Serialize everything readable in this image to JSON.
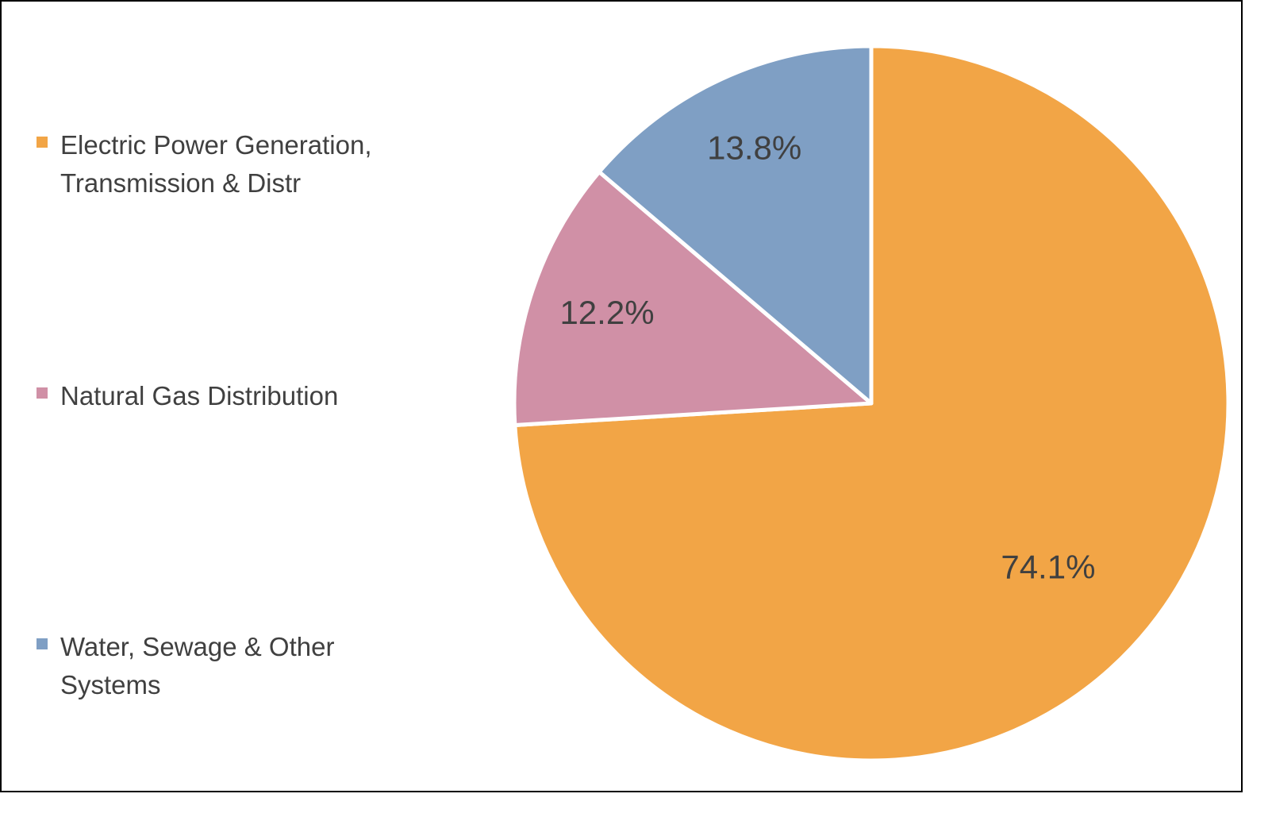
{
  "chart_data": {
    "type": "pie",
    "title": "",
    "legend_position": "left",
    "slices": [
      {
        "name": "Electric Power Generation, Transmission & Distr",
        "value": 74.1,
        "label": "74.1%",
        "color": "#F2A546"
      },
      {
        "name": "Natural Gas Distribution",
        "value": 12.2,
        "label": "12.2%",
        "color": "#D090A6"
      },
      {
        "name": "Water, Sewage & Other Systems",
        "value": 13.8,
        "label": "13.8%",
        "color": "#7F9FC4"
      }
    ]
  }
}
